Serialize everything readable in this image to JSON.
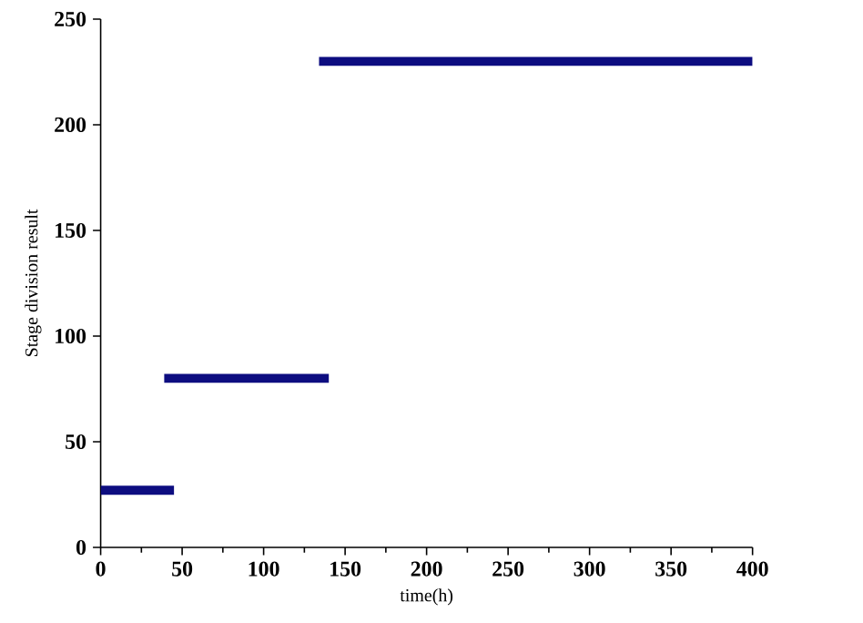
{
  "chart_data": {
    "type": "line",
    "xlabel": "time(h)",
    "ylabel": "Stage division result",
    "xlim": [
      0,
      400
    ],
    "ylim": [
      0,
      250
    ],
    "xticks": [
      0,
      50,
      100,
      150,
      200,
      250,
      300,
      350,
      400
    ],
    "yticks": [
      0,
      50,
      100,
      150,
      200,
      250
    ],
    "grid": false,
    "marker": "none",
    "line_style": "solid",
    "series": [
      {
        "color": "#0d0d80",
        "x": [
          0,
          45
        ],
        "values": [
          27,
          27
        ]
      },
      {
        "color": "#0d0d80",
        "x": [
          39,
          140
        ],
        "values": [
          80,
          80
        ]
      },
      {
        "color": "#0d0d80",
        "x": [
          134,
          400
        ],
        "values": [
          230,
          230
        ]
      }
    ]
  }
}
